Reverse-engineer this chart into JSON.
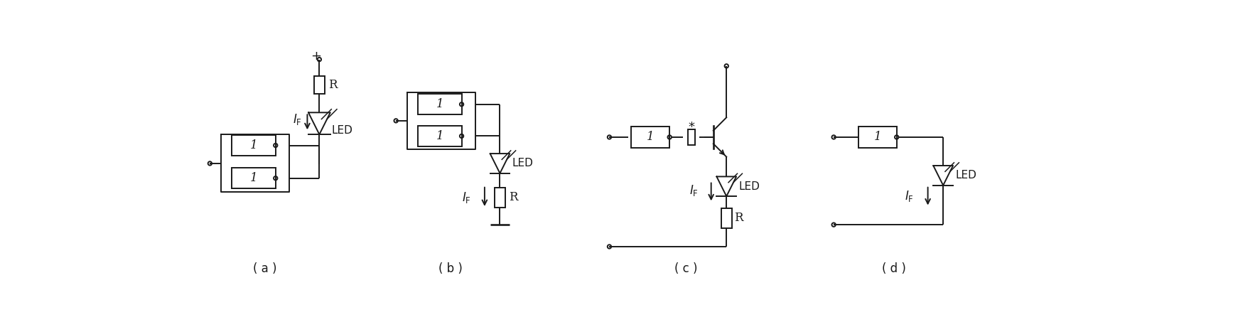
{
  "fig_width": 17.73,
  "fig_height": 4.53,
  "dpi": 100,
  "bg_color": "#ffffff",
  "line_color": "#1a1a1a",
  "lw": 1.4,
  "labels": [
    "( a )",
    "( b )",
    "( c )",
    "( d )"
  ]
}
